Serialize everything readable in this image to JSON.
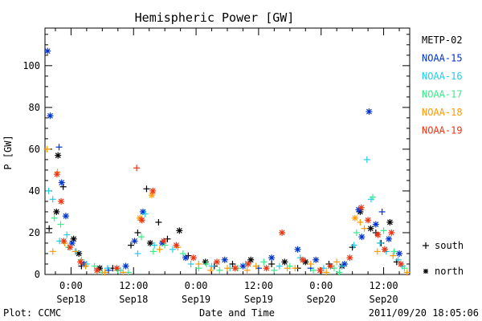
{
  "chart_data": {
    "type": "scatter",
    "title": "Hemispheric Power [GW]",
    "ylabel": "P [GW]",
    "xlabel": "Date and Time",
    "ylim": [
      0,
      118
    ],
    "xlim": [
      -5,
      65
    ],
    "yticks": [
      0,
      20,
      40,
      60,
      80,
      100
    ],
    "xticks": [
      {
        "x": 0,
        "label_top": "0:00",
        "label_bottom": "Sep18"
      },
      {
        "x": 12,
        "label_top": "12:00",
        "label_bottom": "Sep18"
      },
      {
        "x": 24,
        "label_top": "0:00",
        "label_bottom": "Sep19"
      },
      {
        "x": 36,
        "label_top": "12:00",
        "label_bottom": "Sep19"
      },
      {
        "x": 48,
        "label_top": "0:00",
        "label_bottom": "Sep20"
      },
      {
        "x": 60,
        "label_top": "12:00",
        "label_bottom": "Sep20"
      }
    ],
    "x_units": "hours since 2011-09-18 00:00 UT",
    "grid": false,
    "legend_position": "right",
    "legend": [
      {
        "name": "METP-02",
        "color": "#000000"
      },
      {
        "name": "NOAA-15",
        "color": "#0033cc"
      },
      {
        "name": "NOAA-16",
        "color": "#22ccee"
      },
      {
        "name": "NOAA-17",
        "color": "#33ee88"
      },
      {
        "name": "NOAA-18",
        "color": "#ff9900"
      },
      {
        "name": "NOAA-19",
        "color": "#ee3311"
      }
    ],
    "marker_legend": [
      {
        "symbol": "+",
        "label": "south"
      },
      {
        "symbol": "*",
        "label": "north"
      }
    ],
    "series": [
      {
        "name": "METP-02",
        "color": "#000000",
        "points": [
          [
            -2.5,
            57,
            "n"
          ],
          [
            -1.5,
            42,
            "s"
          ],
          [
            -2.8,
            30,
            "n"
          ],
          [
            0.5,
            17,
            "n"
          ],
          [
            1.5,
            10,
            "n"
          ],
          [
            11.5,
            14,
            "s"
          ],
          [
            12.8,
            20,
            "s"
          ],
          [
            14.5,
            41,
            "s"
          ],
          [
            15.2,
            15,
            "n"
          ],
          [
            16.8,
            25,
            "s"
          ],
          [
            18.5,
            17,
            "s"
          ],
          [
            20.8,
            21,
            "n"
          ],
          [
            22.5,
            9,
            "s"
          ],
          [
            25.8,
            6,
            "n"
          ],
          [
            31,
            5,
            "s"
          ],
          [
            34.5,
            7,
            "n"
          ],
          [
            38.5,
            5,
            "s"
          ],
          [
            41,
            6,
            "n"
          ],
          [
            45,
            6,
            "n"
          ],
          [
            49.5,
            5,
            "s"
          ],
          [
            52,
            4,
            "n"
          ],
          [
            54,
            13,
            "s"
          ],
          [
            55.5,
            30,
            "n"
          ],
          [
            57.5,
            22,
            "n"
          ],
          [
            59.5,
            15,
            "s"
          ],
          [
            61.2,
            25,
            "n"
          ],
          [
            62.5,
            6,
            "s"
          ],
          [
            2,
            4,
            "s"
          ],
          [
            5.5,
            3,
            "n"
          ],
          [
            8,
            3,
            "s"
          ],
          [
            -4.2,
            22,
            "s"
          ],
          [
            27.5,
            4,
            "s"
          ],
          [
            43.5,
            3,
            "s"
          ],
          [
            58.5,
            20,
            "s"
          ]
        ]
      },
      {
        "name": "NOAA-15",
        "color": "#0033cc",
        "points": [
          [
            -4.5,
            107,
            "n"
          ],
          [
            -4,
            76,
            "n"
          ],
          [
            -2.3,
            61,
            "s"
          ],
          [
            -1.8,
            44,
            "n"
          ],
          [
            -1,
            28,
            "n"
          ],
          [
            0.2,
            15,
            "n"
          ],
          [
            2.5,
            5,
            "n"
          ],
          [
            12.2,
            16,
            "n"
          ],
          [
            13.8,
            30,
            "n"
          ],
          [
            17.5,
            15,
            "n"
          ],
          [
            22,
            8,
            "n"
          ],
          [
            29.5,
            7,
            "n"
          ],
          [
            33,
            4,
            "n"
          ],
          [
            38.5,
            8,
            "n"
          ],
          [
            43.5,
            12,
            "n"
          ],
          [
            47,
            7,
            "n"
          ],
          [
            52.5,
            5,
            "n"
          ],
          [
            55.2,
            31,
            "n"
          ],
          [
            57.2,
            78,
            "n"
          ],
          [
            58.5,
            24,
            "n"
          ],
          [
            59.7,
            30,
            "s"
          ],
          [
            61,
            17,
            "n"
          ],
          [
            63,
            10,
            "n"
          ],
          [
            36,
            3,
            "s"
          ],
          [
            46,
            3,
            "s"
          ],
          [
            10.5,
            4,
            "n"
          ],
          [
            7.2,
            2,
            "s"
          ],
          [
            55.8,
            18,
            "n"
          ]
        ]
      },
      {
        "name": "NOAA-16",
        "color": "#22ccee",
        "points": [
          [
            -4.3,
            40,
            "s"
          ],
          [
            -3.5,
            36,
            "s"
          ],
          [
            -2.2,
            16,
            "s"
          ],
          [
            -0.8,
            19,
            "s"
          ],
          [
            1,
            11,
            "s"
          ],
          [
            3,
            5,
            "s"
          ],
          [
            7,
            3,
            "s"
          ],
          [
            12.8,
            10,
            "s"
          ],
          [
            14.2,
            29,
            "s"
          ],
          [
            16,
            14,
            "s"
          ],
          [
            19.5,
            12,
            "s"
          ],
          [
            23,
            5,
            "s"
          ],
          [
            27,
            4,
            "s"
          ],
          [
            33.5,
            5,
            "s"
          ],
          [
            40,
            4,
            "s"
          ],
          [
            48.5,
            3,
            "s"
          ],
          [
            52,
            4,
            "s"
          ],
          [
            56.8,
            55,
            "s"
          ],
          [
            57.6,
            36,
            "s"
          ],
          [
            59.3,
            15,
            "s"
          ],
          [
            60.5,
            11,
            "s"
          ],
          [
            62.8,
            7,
            "s"
          ],
          [
            44,
            8,
            "s"
          ],
          [
            9.5,
            2,
            "s"
          ],
          [
            30.5,
            3,
            "s"
          ],
          [
            54.3,
            14,
            "s"
          ],
          [
            63.6,
            4,
            "s"
          ]
        ]
      },
      {
        "name": "NOAA-17",
        "color": "#33ee88",
        "points": [
          [
            -3.2,
            27,
            "s"
          ],
          [
            -2,
            24,
            "s"
          ],
          [
            -0.5,
            13,
            "s"
          ],
          [
            2,
            7,
            "s"
          ],
          [
            4.5,
            4,
            "s"
          ],
          [
            9,
            2,
            "s"
          ],
          [
            13.5,
            18,
            "s"
          ],
          [
            15.8,
            11,
            "s"
          ],
          [
            18,
            14,
            "s"
          ],
          [
            21.5,
            10,
            "s"
          ],
          [
            26,
            5,
            "s"
          ],
          [
            32,
            3,
            "s"
          ],
          [
            37,
            6,
            "s"
          ],
          [
            42,
            4,
            "s"
          ],
          [
            46.5,
            2,
            "s"
          ],
          [
            50.5,
            3,
            "s"
          ],
          [
            54.8,
            20,
            "s"
          ],
          [
            57.9,
            37,
            "s"
          ],
          [
            60,
            21,
            "s"
          ],
          [
            62,
            11,
            "s"
          ],
          [
            64,
            3,
            "s"
          ],
          [
            6,
            1,
            "s"
          ],
          [
            28.5,
            2,
            "s"
          ],
          [
            39,
            2,
            "s"
          ],
          [
            51.5,
            1,
            "s"
          ],
          [
            11,
            1,
            "s"
          ],
          [
            24.5,
            3,
            "s"
          ]
        ]
      },
      {
        "name": "NOAA-18",
        "color": "#ff9900",
        "points": [
          [
            -4.6,
            60,
            "s"
          ],
          [
            -2.6,
            49,
            "s"
          ],
          [
            -3.5,
            11,
            "s"
          ],
          [
            -1.2,
            15,
            "s"
          ],
          [
            0.8,
            11,
            "s"
          ],
          [
            2.8,
            4,
            "s"
          ],
          [
            6.5,
            1,
            "s"
          ],
          [
            13.2,
            27,
            "n"
          ],
          [
            15.5,
            38,
            "n"
          ],
          [
            17,
            12,
            "s"
          ],
          [
            20.5,
            13,
            "s"
          ],
          [
            24.5,
            5,
            "s"
          ],
          [
            30,
            3,
            "s"
          ],
          [
            35.5,
            4,
            "s"
          ],
          [
            41.5,
            3,
            "s"
          ],
          [
            46,
            5,
            "s"
          ],
          [
            51,
            6,
            "s"
          ],
          [
            54.5,
            27,
            "n"
          ],
          [
            56.3,
            22,
            "s"
          ],
          [
            58.8,
            11,
            "s"
          ],
          [
            61.8,
            9,
            "s"
          ],
          [
            64.5,
            1,
            "s"
          ],
          [
            10,
            1,
            "s"
          ],
          [
            26.8,
            2,
            "s"
          ],
          [
            33.8,
            2,
            "s"
          ],
          [
            43,
            3,
            "s"
          ],
          [
            49,
            1,
            "s"
          ],
          [
            55.5,
            25,
            "s"
          ]
        ]
      },
      {
        "name": "NOAA-19",
        "color": "#ee3311",
        "points": [
          [
            -2.7,
            48,
            "n"
          ],
          [
            -1.9,
            35,
            "n"
          ],
          [
            -1.4,
            16,
            "n"
          ],
          [
            -0.2,
            13,
            "n"
          ],
          [
            1.8,
            6,
            "n"
          ],
          [
            12.6,
            51,
            "s"
          ],
          [
            13.6,
            26,
            "n"
          ],
          [
            15.7,
            40,
            "n"
          ],
          [
            17.8,
            16,
            "n"
          ],
          [
            20.2,
            14,
            "n"
          ],
          [
            23.5,
            8,
            "n"
          ],
          [
            28,
            6,
            "n"
          ],
          [
            34,
            5,
            "n"
          ],
          [
            40.5,
            20,
            "n"
          ],
          [
            44.5,
            7,
            "n"
          ],
          [
            49.8,
            4,
            "n"
          ],
          [
            53.5,
            8,
            "n"
          ],
          [
            55.7,
            32,
            "n"
          ],
          [
            57,
            26,
            "n"
          ],
          [
            58.9,
            19,
            "n"
          ],
          [
            61.5,
            20,
            "n"
          ],
          [
            63.3,
            5,
            "n"
          ],
          [
            8.8,
            3,
            "n"
          ],
          [
            31.5,
            3,
            "n"
          ],
          [
            37.5,
            3,
            "n"
          ],
          [
            47.8,
            2,
            "n"
          ],
          [
            5,
            2,
            "n"
          ],
          [
            60.2,
            12,
            "n"
          ]
        ]
      }
    ]
  },
  "footer": {
    "left": "Plot: CCMC",
    "right": "2011/09/20 18:05:06"
  }
}
